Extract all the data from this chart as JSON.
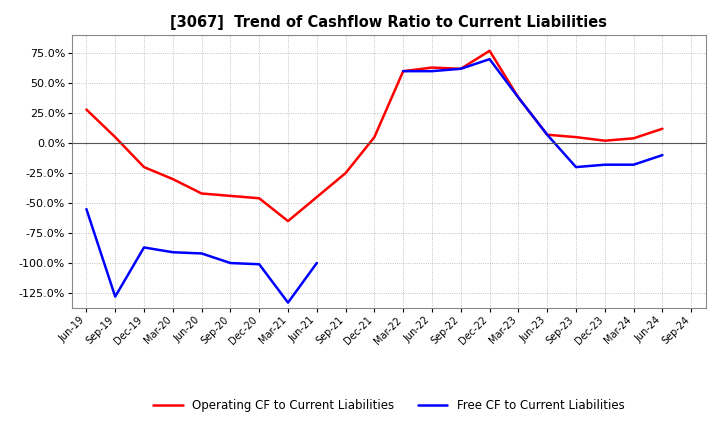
{
  "title": "[3067]  Trend of Cashflow Ratio to Current Liabilities",
  "x_labels": [
    "Jun-19",
    "Sep-19",
    "Dec-19",
    "Mar-20",
    "Jun-20",
    "Sep-20",
    "Dec-20",
    "Mar-21",
    "Jun-21",
    "Sep-21",
    "Dec-21",
    "Mar-22",
    "Jun-22",
    "Sep-22",
    "Dec-22",
    "Mar-23",
    "Jun-23",
    "Sep-23",
    "Dec-23",
    "Mar-24",
    "Jun-24",
    "Sep-24"
  ],
  "operating_cf": [
    28.0,
    5.0,
    -20.0,
    -30.0,
    -42.0,
    -44.0,
    -46.0,
    -65.0,
    -45.0,
    -25.0,
    5.0,
    60.0,
    63.0,
    62.0,
    77.0,
    38.0,
    7.0,
    5.0,
    2.0,
    4.0,
    12.0,
    null
  ],
  "free_cf": [
    -55.0,
    -128.0,
    -87.0,
    -91.0,
    -92.0,
    -100.0,
    -101.0,
    -133.0,
    -100.0,
    null,
    null,
    60.0,
    60.0,
    62.0,
    70.0,
    38.0,
    7.0,
    -20.0,
    -18.0,
    -18.0,
    -10.0,
    null
  ],
  "ylim": [
    -137.5,
    90.0
  ],
  "yticks": [
    -125.0,
    -100.0,
    -75.0,
    -50.0,
    -25.0,
    0.0,
    25.0,
    50.0,
    75.0
  ],
  "operating_color": "#ff0000",
  "free_color": "#0000ff",
  "background_color": "#ffffff",
  "grid_color": "#b0b0b0",
  "legend_labels": [
    "Operating CF to Current Liabilities",
    "Free CF to Current Liabilities"
  ]
}
